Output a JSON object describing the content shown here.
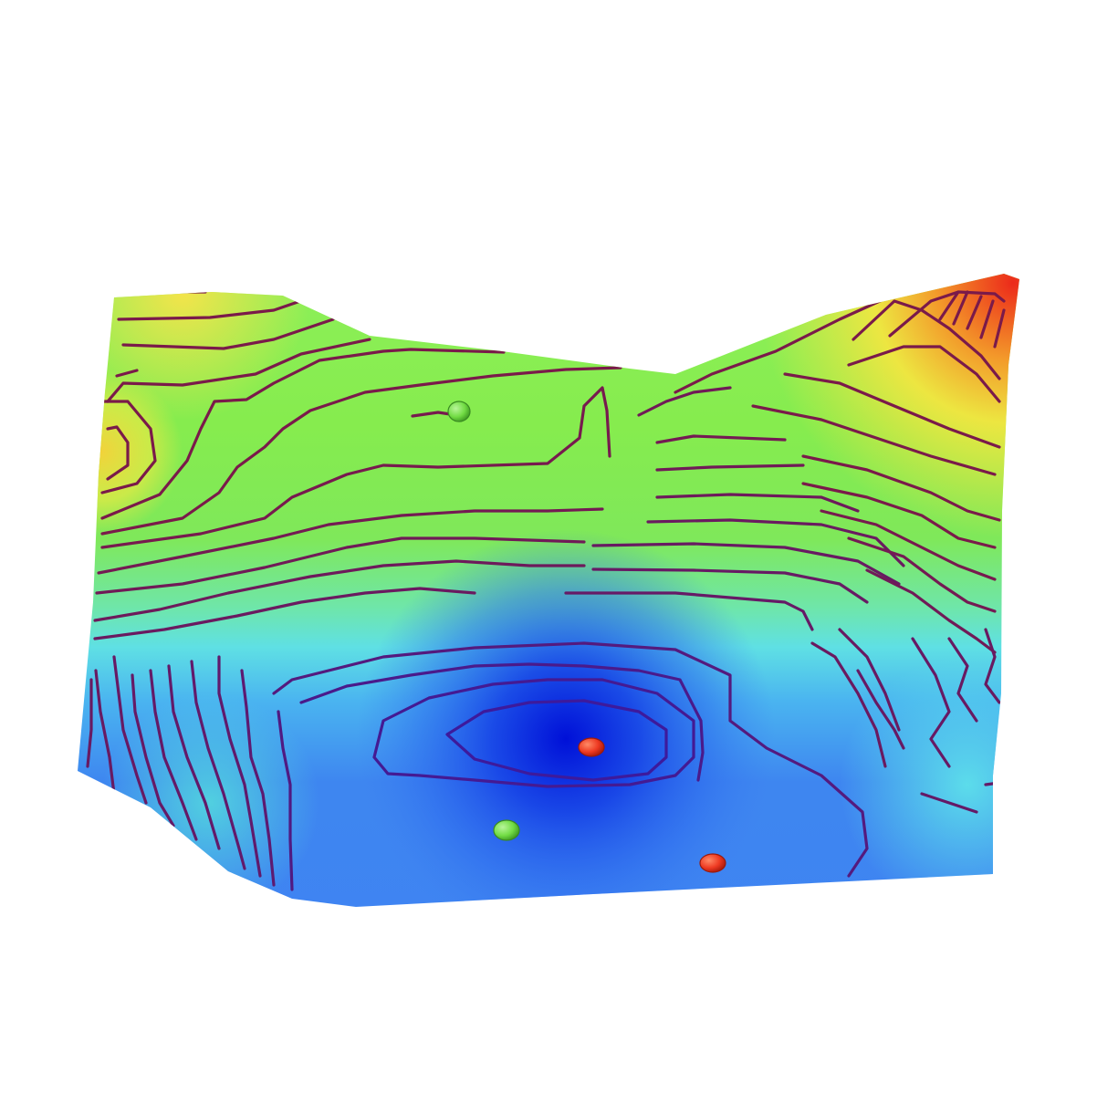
{
  "chart_data": {
    "type": "surface",
    "title": "",
    "colors": {
      "low": "#0a14e0",
      "mid_low": "#3d82f0",
      "mid": "#5fe6ea",
      "mid_high": "#7aea4a",
      "high": "#f2e640",
      "peak": "#ec2a1a",
      "contour_low": "#3a1aa0",
      "contour_high": "#7a1a4a"
    },
    "contour_lines": true,
    "markers": [
      {
        "name": "green-marker-top",
        "color": "#76e04a"
      },
      {
        "name": "green-marker-bottom",
        "color": "#76e04a"
      },
      {
        "name": "red-marker-center",
        "color": "#ee3a22"
      },
      {
        "name": "red-marker-bottom",
        "color": "#ee3a22"
      }
    ]
  }
}
